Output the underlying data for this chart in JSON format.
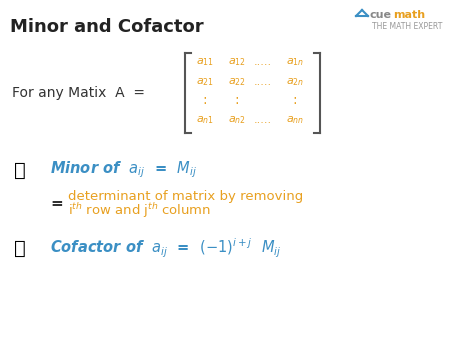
{
  "title": "Minor and Cofactor",
  "title_color": "#222222",
  "title_fontsize": 13,
  "bg_color": "#ffffff",
  "orange_color": "#E8A020",
  "blue_color": "#3B8FC4",
  "text_color": "#333333",
  "matrix_label": "For any Matix  A  =",
  "minor_line1": "Minor of  $a_{ij}$ = $M_{ij}$",
  "equal_sign": "=",
  "det_line1": "determinant of matrix by removing",
  "det_line2": "iᵗʰ row and jᵗʰ column",
  "cofactor_line": "Cofactor of  $a_{ij}$  =  $(-1)^{i+j}$ $M_{ij}$",
  "cuemath_text": "cuemath\nTHE MATH EXPERT",
  "cue_color": "#3B8FC4",
  "math_expert_color": "#888888"
}
